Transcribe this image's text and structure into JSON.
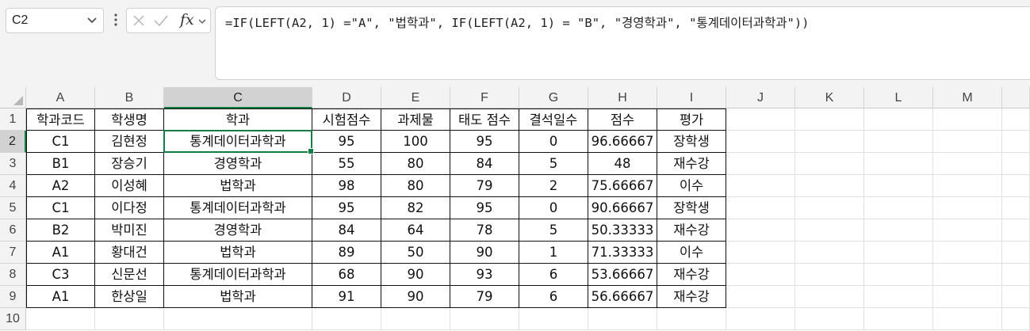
{
  "namebox": {
    "value": "C2"
  },
  "formula_bar": {
    "fx_label": "fx",
    "formula": "=IF(LEFT(A2, 1) =\"A\", \"법학과\", IF(LEFT(A2, 1) = \"B\", \"경영학과\", \"통계데이터과학과\"))"
  },
  "selected_cell": "C2",
  "columns": [
    "A",
    "B",
    "C",
    "D",
    "E",
    "F",
    "G",
    "H",
    "I",
    "J",
    "K",
    "L",
    "M"
  ],
  "rows": [
    "1",
    "2",
    "3",
    "4",
    "5",
    "6",
    "7",
    "8",
    "9",
    "10"
  ],
  "table": {
    "headers": [
      "학과코드",
      "학생명",
      "학과",
      "시험점수",
      "과제물",
      "태도 점수",
      "결석일수",
      "점수",
      "평가"
    ],
    "records": [
      [
        "C1",
        "김현정",
        "통계데이터과학과",
        "95",
        "100",
        "95",
        "0",
        "96.66667",
        "장학생"
      ],
      [
        "B1",
        "장승기",
        "경영학과",
        "55",
        "80",
        "84",
        "5",
        "48",
        "재수강"
      ],
      [
        "A2",
        "이성혜",
        "법학과",
        "98",
        "80",
        "79",
        "2",
        "75.66667",
        "이수"
      ],
      [
        "C1",
        "이다정",
        "통계데이터과학과",
        "95",
        "82",
        "95",
        "0",
        "90.66667",
        "장학생"
      ],
      [
        "B2",
        "박미진",
        "경영학과",
        "84",
        "64",
        "78",
        "5",
        "50.33333",
        "재수강"
      ],
      [
        "A1",
        "황대건",
        "법학과",
        "89",
        "50",
        "90",
        "1",
        "71.33333",
        "이수"
      ],
      [
        "C3",
        "신문선",
        "통계데이터과학과",
        "68",
        "90",
        "93",
        "6",
        "53.66667",
        "재수강"
      ],
      [
        "A1",
        "한상일",
        "법학과",
        "91",
        "90",
        "79",
        "6",
        "56.66667",
        "재수강"
      ]
    ]
  }
}
